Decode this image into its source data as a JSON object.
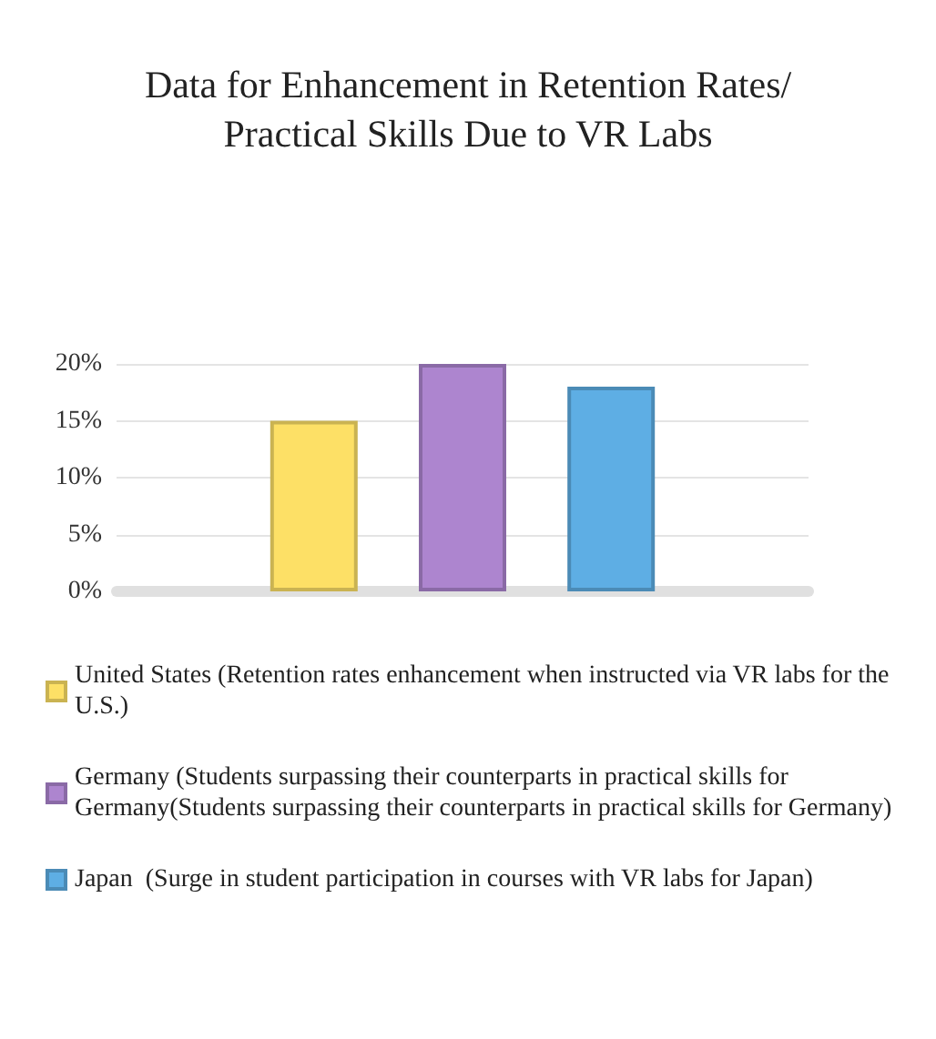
{
  "chart_data": {
    "type": "bar",
    "title": "Data for Enhancement in Retention Rates/Practical Skills Due to VR Labs",
    "categories": [
      null
    ],
    "series": [
      {
        "name": "United States (Retention rates enhancement when instructed via VR labs for the U.S.)",
        "color": "#fde066",
        "values": [
          15
        ]
      },
      {
        "name": "Germany (Students surpassing their counterparts in practical skills for Germany(Students surpassing their counterparts in practical skills for Germany)",
        "color": "#ad85cf",
        "values": [
          20
        ]
      },
      {
        "name": "Japan  (Surge in student participation in courses with VR labs for Japan)",
        "color": "#5eaee4",
        "values": [
          18
        ]
      }
    ],
    "ylim": [
      0,
      20
    ],
    "yticks": [
      {
        "value": 0,
        "label": "0%"
      },
      {
        "value": 5,
        "label": "5%"
      },
      {
        "value": 10,
        "label": "10%"
      },
      {
        "value": 15,
        "label": "15%"
      },
      {
        "value": 20,
        "label": "20%"
      }
    ],
    "grid": true,
    "legend": "bottom"
  }
}
